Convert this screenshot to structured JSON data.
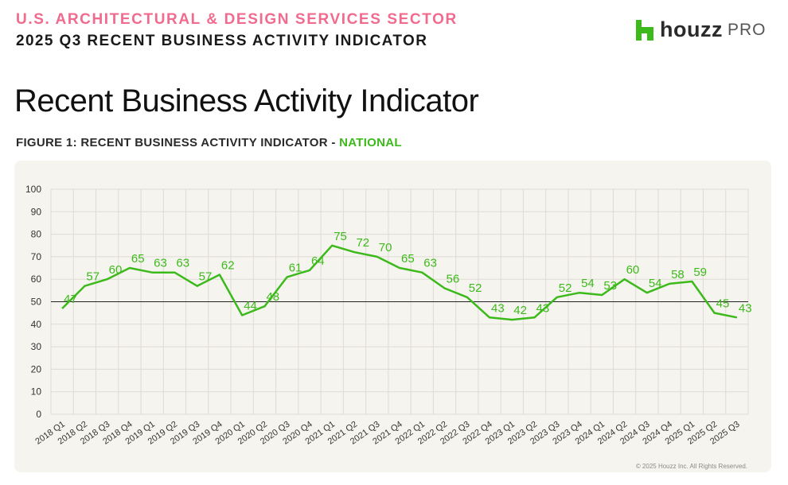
{
  "header": {
    "sector": "U.S. ARCHITECTURAL & DESIGN SERVICES SECTOR",
    "quarter": "2025 Q3 RECENT BUSINESS ACTIVITY INDICATOR",
    "logo_text": "houzz",
    "logo_suffix": "PRO",
    "logo_icon": "houzz-h-icon"
  },
  "page_title": "Recent Business Activity Indicator",
  "figure": {
    "label_prefix": "FIGURE 1: RECENT BUSINESS ACTIVITY INDICATOR - ",
    "label_highlight": "NATIONAL"
  },
  "copyright": "© 2025 Houzz Inc. All Rights Reserved.",
  "colors": {
    "accent_pink": "#f16b8f",
    "line_green": "#3dba1b",
    "card_bg": "#f6f4ef"
  },
  "chart_data": {
    "type": "line",
    "categories": [
      "2018 Q1",
      "2018 Q2",
      "2018 Q3",
      "2018 Q4",
      "2019 Q1",
      "2019 Q2",
      "2019 Q3",
      "2019 Q4",
      "2020 Q1",
      "2020 Q2",
      "2020 Q3",
      "2020 Q4",
      "2021 Q1",
      "2021 Q2",
      "2021 Q3",
      "2021 Q4",
      "2022 Q1",
      "2022 Q2",
      "2022 Q3",
      "2022 Q4",
      "2023 Q1",
      "2023 Q2",
      "2023 Q3",
      "2023 Q4",
      "2024 Q1",
      "2024 Q2",
      "2024 Q3",
      "2024 Q4",
      "2025 Q1",
      "2025 Q2",
      "2025 Q3"
    ],
    "series": [
      {
        "values": [
          47,
          57,
          60,
          65,
          63,
          63,
          57,
          62,
          44,
          48,
          61,
          64,
          75,
          72,
          70,
          65,
          63,
          56,
          52,
          43,
          42,
          43,
          52,
          54,
          53,
          60,
          54,
          58,
          59,
          45,
          43
        ]
      }
    ],
    "ylim": [
      0,
      100
    ],
    "yticks": [
      0,
      10,
      20,
      30,
      40,
      50,
      60,
      70,
      80,
      90,
      100
    ],
    "reference_line": 50,
    "grid": true,
    "data_labels": true
  }
}
